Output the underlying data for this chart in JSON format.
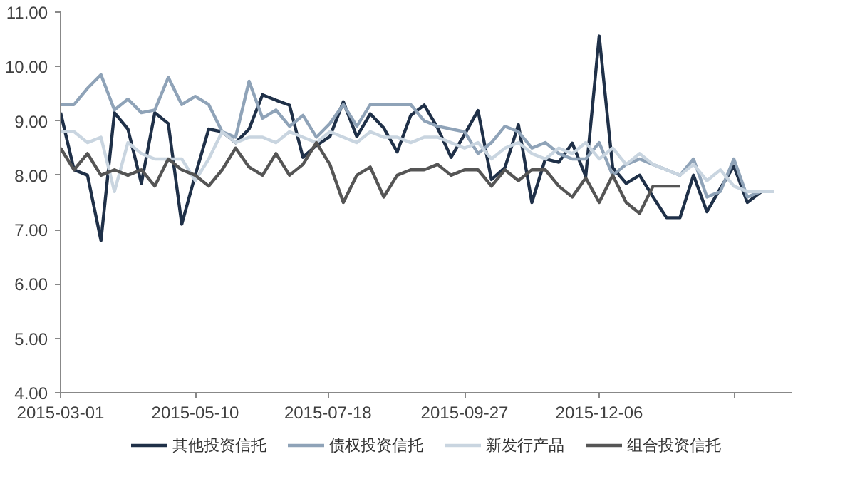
{
  "chart_data": {
    "type": "line",
    "x": [
      "2015-03-01",
      "2015-03-08",
      "2015-03-15",
      "2015-03-22",
      "2015-03-29",
      "2015-04-05",
      "2015-04-12",
      "2015-04-19",
      "2015-04-26",
      "2015-05-03",
      "2015-05-10",
      "2015-05-17",
      "2015-05-24",
      "2015-05-31",
      "2015-06-07",
      "2015-06-14",
      "2015-06-21",
      "2015-06-28",
      "2015-07-05",
      "2015-07-12",
      "2015-07-19",
      "2015-07-26",
      "2015-08-02",
      "2015-08-09",
      "2015-08-16",
      "2015-08-23",
      "2015-08-30",
      "2015-09-06",
      "2015-09-13",
      "2015-09-20",
      "2015-09-27",
      "2015-10-04",
      "2015-10-11",
      "2015-10-18",
      "2015-10-25",
      "2015-11-01",
      "2015-11-08",
      "2015-11-15",
      "2015-11-22",
      "2015-11-29",
      "2015-12-06",
      "2015-12-13",
      "2015-12-20",
      "2015-12-27",
      "2016-01-03",
      "2016-01-10",
      "2016-01-17",
      "2016-01-24",
      "2016-01-31",
      "2016-02-07",
      "2016-02-14",
      "2016-02-21",
      "2016-02-28",
      "2016-03-06"
    ],
    "series": [
      {
        "name": "其他投资信托",
        "color": "#1f3048",
        "values": [
          9.15,
          8.1,
          8.0,
          6.8,
          9.15,
          8.85,
          7.85,
          9.15,
          8.95,
          7.1,
          8.0,
          8.85,
          8.8,
          8.6,
          8.85,
          9.48,
          9.38,
          9.29,
          8.33,
          8.55,
          8.71,
          9.35,
          8.71,
          9.13,
          8.87,
          8.43,
          9.1,
          9.29,
          8.87,
          8.33,
          8.75,
          9.19,
          7.92,
          8.14,
          8.93,
          7.5,
          8.3,
          8.24,
          8.59,
          7.98,
          10.56,
          8.14,
          7.85,
          8.0,
          7.6,
          7.22,
          7.22,
          8.0,
          7.33,
          7.76,
          8.17,
          7.5,
          7.69,
          null
        ]
      },
      {
        "name": "债权投资信托",
        "color": "#8fa3b8",
        "values": [
          9.3,
          9.3,
          9.6,
          9.85,
          9.2,
          9.4,
          9.15,
          9.2,
          9.8,
          9.3,
          9.45,
          9.3,
          8.8,
          8.7,
          9.73,
          9.05,
          9.2,
          8.9,
          9.1,
          8.7,
          8.95,
          9.3,
          8.9,
          9.3,
          9.3,
          9.3,
          9.3,
          9.0,
          8.9,
          8.85,
          8.8,
          8.4,
          8.6,
          8.9,
          8.8,
          8.5,
          8.6,
          8.4,
          8.3,
          8.3,
          8.6,
          8.0,
          8.2,
          8.3,
          8.2,
          8.1,
          8.0,
          8.3,
          7.6,
          7.7,
          8.3,
          7.6,
          7.7,
          null
        ]
      },
      {
        "name": "新发行产品",
        "color": "#c9d5e0",
        "values": [
          8.8,
          8.8,
          8.6,
          8.7,
          7.7,
          8.6,
          8.4,
          8.3,
          8.3,
          8.3,
          7.9,
          8.3,
          8.8,
          8.6,
          8.7,
          8.7,
          8.6,
          8.8,
          8.7,
          8.6,
          8.8,
          8.7,
          8.6,
          8.8,
          8.7,
          8.7,
          8.6,
          8.7,
          8.7,
          8.6,
          8.5,
          8.6,
          8.3,
          8.5,
          8.6,
          8.4,
          8.3,
          8.5,
          8.4,
          8.6,
          8.3,
          8.5,
          8.2,
          8.4,
          8.2,
          8.1,
          8.0,
          8.2,
          7.9,
          8.1,
          7.8,
          7.7,
          7.7,
          7.7
        ]
      },
      {
        "name": "组合投资信托",
        "color": "#555555",
        "values": [
          8.5,
          8.1,
          8.4,
          8.0,
          8.1,
          8.0,
          8.1,
          7.8,
          8.3,
          8.1,
          8.0,
          7.8,
          8.1,
          8.5,
          8.15,
          8.0,
          8.4,
          8.0,
          8.2,
          8.6,
          8.2,
          7.5,
          8.0,
          8.15,
          7.6,
          8.0,
          8.1,
          8.1,
          8.2,
          8.0,
          8.1,
          8.1,
          7.8,
          8.1,
          7.9,
          8.1,
          8.1,
          7.8,
          7.6,
          7.95,
          7.5,
          8.0,
          7.5,
          7.3,
          7.8,
          7.8,
          7.8,
          null,
          null,
          null,
          null,
          null,
          null,
          null
        ]
      }
    ],
    "xlim": [
      "2015-03-01",
      "2016-03-15"
    ],
    "xticks": [
      {
        "value": "2015-03-01",
        "label": "2015-03-01"
      },
      {
        "value": "2015-05-10",
        "label": "2015-05-10"
      },
      {
        "value": "2015-07-18",
        "label": "2015-07-18"
      },
      {
        "value": "2015-09-27",
        "label": "2015-09-27"
      },
      {
        "value": "2015-12-06",
        "label": "2015-12-06"
      },
      {
        "value": "2016-02-14",
        "label": null
      }
    ],
    "ylim": [
      4,
      11
    ],
    "yticks": [
      {
        "value": 4,
        "label": "4.00"
      },
      {
        "value": 5,
        "label": "5.00"
      },
      {
        "value": 6,
        "label": "6.00"
      },
      {
        "value": 7,
        "label": "7.00"
      },
      {
        "value": 8,
        "label": "8.00"
      },
      {
        "value": 9,
        "label": "9.00"
      },
      {
        "value": 10,
        "label": "10.00"
      },
      {
        "value": 11,
        "label": "11.00"
      }
    ],
    "grid": false,
    "legend": "bottom",
    "marker": "none",
    "line_style": "solid"
  }
}
